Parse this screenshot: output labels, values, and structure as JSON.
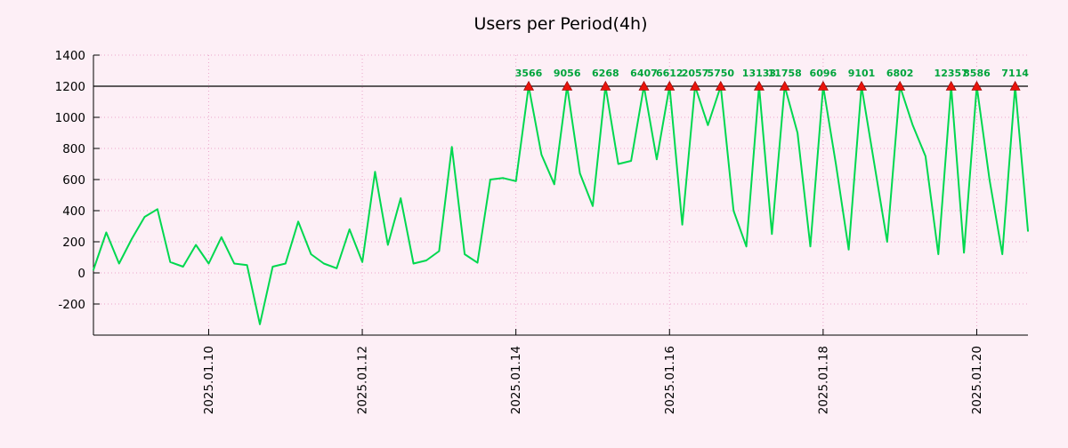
{
  "chart_data": {
    "type": "line",
    "title": "Users per Period(4h)",
    "series_name": "users",
    "x_start": "2025.01.08 12:00",
    "x_step_hours": 4,
    "timestamps": [
      "2025.01.08 12:00",
      "2025.01.08 16:00",
      "2025.01.08 20:00",
      "2025.01.09 00:00",
      "2025.01.09 04:00",
      "2025.01.09 08:00",
      "2025.01.09 12:00",
      "2025.01.09 16:00",
      "2025.01.09 20:00",
      "2025.01.10 00:00",
      "2025.01.10 04:00",
      "2025.01.10 08:00",
      "2025.01.10 12:00",
      "2025.01.10 16:00",
      "2025.01.10 20:00",
      "2025.01.11 00:00",
      "2025.01.11 04:00",
      "2025.01.11 08:00",
      "2025.01.11 12:00",
      "2025.01.11 16:00",
      "2025.01.11 20:00",
      "2025.01.12 00:00",
      "2025.01.12 04:00",
      "2025.01.12 08:00",
      "2025.01.12 12:00",
      "2025.01.12 16:00",
      "2025.01.12 20:00",
      "2025.01.13 00:00",
      "2025.01.13 04:00",
      "2025.01.13 08:00",
      "2025.01.13 12:00",
      "2025.01.13 16:00",
      "2025.01.13 20:00",
      "2025.01.14 00:00",
      "2025.01.14 04:00",
      "2025.01.14 08:00",
      "2025.01.14 12:00",
      "2025.01.14 16:00",
      "2025.01.14 20:00",
      "2025.01.15 00:00",
      "2025.01.15 04:00",
      "2025.01.15 08:00",
      "2025.01.15 12:00",
      "2025.01.15 16:00",
      "2025.01.15 20:00",
      "2025.01.16 00:00",
      "2025.01.16 04:00",
      "2025.01.16 08:00",
      "2025.01.16 12:00",
      "2025.01.16 16:00",
      "2025.01.16 20:00",
      "2025.01.17 00:00",
      "2025.01.17 04:00",
      "2025.01.17 08:00",
      "2025.01.17 12:00",
      "2025.01.17 16:00",
      "2025.01.17 20:00",
      "2025.01.18 00:00",
      "2025.01.18 04:00",
      "2025.01.18 08:00",
      "2025.01.18 12:00",
      "2025.01.18 16:00",
      "2025.01.18 20:00",
      "2025.01.19 00:00",
      "2025.01.19 04:00",
      "2025.01.19 08:00",
      "2025.01.19 12:00",
      "2025.01.19 16:00",
      "2025.01.19 20:00",
      "2025.01.20 00:00",
      "2025.01.20 04:00",
      "2025.01.20 08:00",
      "2025.01.20 12:00",
      "2025.01.20 16:00"
    ],
    "values": [
      20,
      260,
      60,
      220,
      360,
      410,
      70,
      40,
      180,
      60,
      230,
      60,
      50,
      -330,
      40,
      60,
      330,
      120,
      60,
      30,
      280,
      70,
      650,
      180,
      480,
      60,
      80,
      140,
      810,
      120,
      65,
      600,
      610,
      590,
      3566,
      760,
      570,
      9056,
      640,
      430,
      6268,
      700,
      720,
      6407,
      730,
      6612,
      310,
      2057,
      950,
      5750,
      400,
      170,
      13133,
      250,
      11758,
      900,
      170,
      6096,
      700,
      150,
      9101,
      700,
      200,
      6802,
      950,
      750,
      120,
      12357,
      130,
      8586,
      600,
      120,
      7114,
      270
    ],
    "clip_value": 1200,
    "clipped_point_labels": [
      "3566",
      "9056",
      "6268",
      "6407",
      "6612",
      "2057",
      "5750",
      "13133",
      "11758",
      "6096",
      "9101",
      "6802",
      "12357",
      "8586",
      "7114"
    ],
    "y_ticks": [
      1400,
      1200,
      1000,
      800,
      600,
      400,
      200,
      0,
      -200
    ],
    "ylim": [
      -400,
      1400
    ],
    "x_ticks": [
      {
        "label": "2025.01.10",
        "index": 9
      },
      {
        "label": "2025.01.12",
        "index": 21
      },
      {
        "label": "2025.01.14",
        "index": 33
      },
      {
        "label": "2025.01.16",
        "index": 45
      },
      {
        "label": "2025.01.18",
        "index": 57
      },
      {
        "label": "2025.01.20",
        "index": 69
      }
    ],
    "grid": true,
    "legend": "none",
    "colors": {
      "background": "#fdeff6",
      "grid": "#eaa6cb",
      "line": "#00d84f",
      "clip_line": "#000000",
      "marker": "#e8140c",
      "marker_edge": "#8f0000",
      "value_label": "#00a43c",
      "axis": "#000000",
      "text": "#000000"
    }
  }
}
